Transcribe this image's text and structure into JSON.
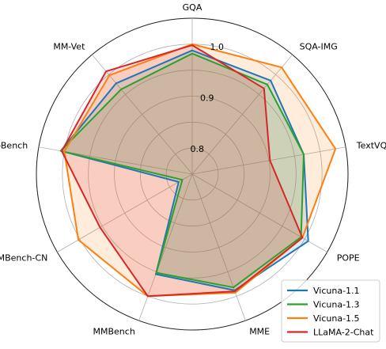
{
  "chart_data": {
    "type": "radar",
    "title": "",
    "axes": [
      "GQA",
      "SQA-IMG",
      "TextVQA",
      "POPE",
      "MME",
      "MMBench",
      "MMBench-CN",
      "SEED-Bench",
      "MM-Vet"
    ],
    "radial_range": [
      0.75,
      1.05
    ],
    "radial_ticks": [
      0.8,
      0.9,
      1.0
    ],
    "radial_tick_labels": [
      "0.8",
      "0.9",
      "1.0"
    ],
    "grid": true,
    "legend_position": "bottom-right",
    "series": [
      {
        "name": "Vicuna-1.1",
        "color": "#1f77b4",
        "values": [
          0.988,
          0.985,
          0.968,
          1.008,
          0.988,
          0.955,
          0.78,
          1.007,
          0.978
        ]
      },
      {
        "name": "Vicuna-1.3",
        "color": "#2ca02c",
        "values": [
          0.982,
          0.975,
          0.968,
          0.992,
          0.982,
          0.952,
          0.772,
          1.007,
          0.963
        ]
      },
      {
        "name": "Vicuna-1.5",
        "color": "#ff7f0e",
        "values": [
          1.0,
          1.018,
          1.03,
          0.995,
          0.993,
          1.0,
          1.003,
          1.0,
          0.998
        ]
      },
      {
        "name": "LLaMA-2-Chat",
        "color": "#d62728",
        "values": [
          0.998,
          0.965,
          0.902,
          0.995,
          0.99,
          1.0,
          0.955,
          1.005,
          1.008
        ]
      }
    ]
  }
}
